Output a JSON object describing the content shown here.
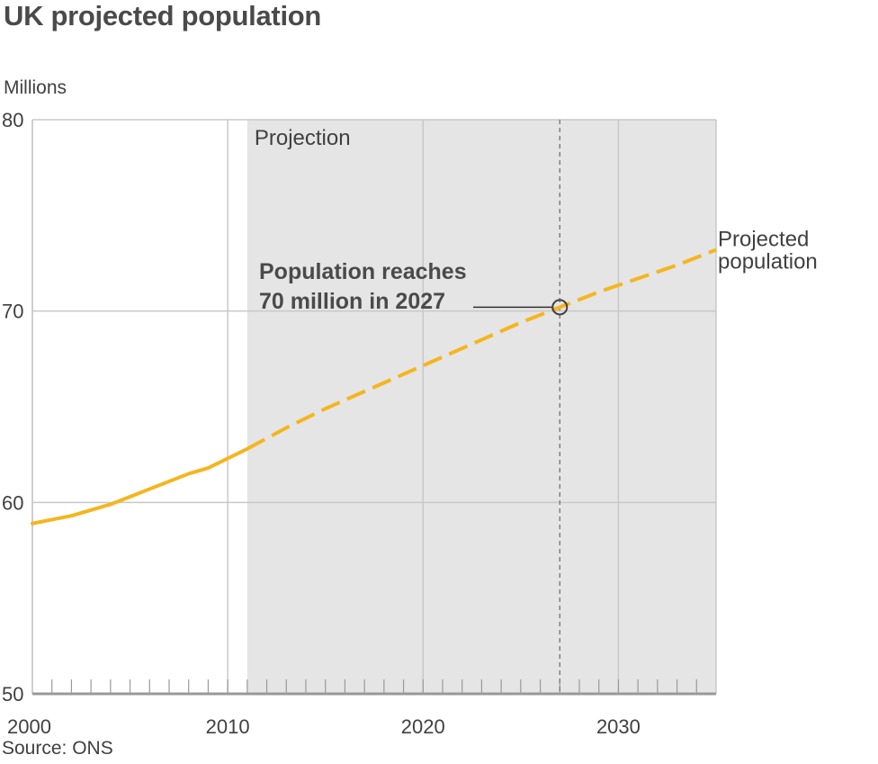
{
  "title": "UK projected population",
  "source": "Source: ONS",
  "colors": {
    "line": "#f5b51f",
    "projection_band": "#e5e5e5",
    "grid": "#c8c8c8",
    "text": "#404040"
  },
  "chart_data": {
    "type": "line",
    "title": "UK projected population",
    "ylabel": "Millions",
    "xlim": [
      2000,
      2035
    ],
    "ylim": [
      50,
      80
    ],
    "x_ticks": [
      2000,
      2010,
      2020,
      2030
    ],
    "y_ticks": [
      50,
      60,
      70,
      80
    ],
    "projection_start": 2011,
    "projection_label": "Projection",
    "series": [
      {
        "name": "Projected population",
        "style": "solid",
        "x": [
          2000,
          2001,
          2002,
          2003,
          2004,
          2005,
          2006,
          2007,
          2008,
          2009,
          2010,
          2011
        ],
        "y": [
          58.9,
          59.1,
          59.3,
          59.6,
          59.9,
          60.3,
          60.7,
          61.1,
          61.5,
          61.8,
          62.3,
          62.8
        ]
      },
      {
        "name": "Projected population",
        "style": "dashed",
        "x": [
          2011,
          2013,
          2015,
          2017,
          2019,
          2021,
          2023,
          2025,
          2027,
          2029,
          2031,
          2033,
          2035
        ],
        "y": [
          62.8,
          63.9,
          64.9,
          65.8,
          66.7,
          67.6,
          68.5,
          69.4,
          70.2,
          71.0,
          71.7,
          72.4,
          73.2
        ]
      }
    ],
    "annotations": [
      {
        "line1": "Population reaches",
        "line2": "70 million in 2027",
        "x": 2027,
        "y": 70.2
      }
    ]
  }
}
